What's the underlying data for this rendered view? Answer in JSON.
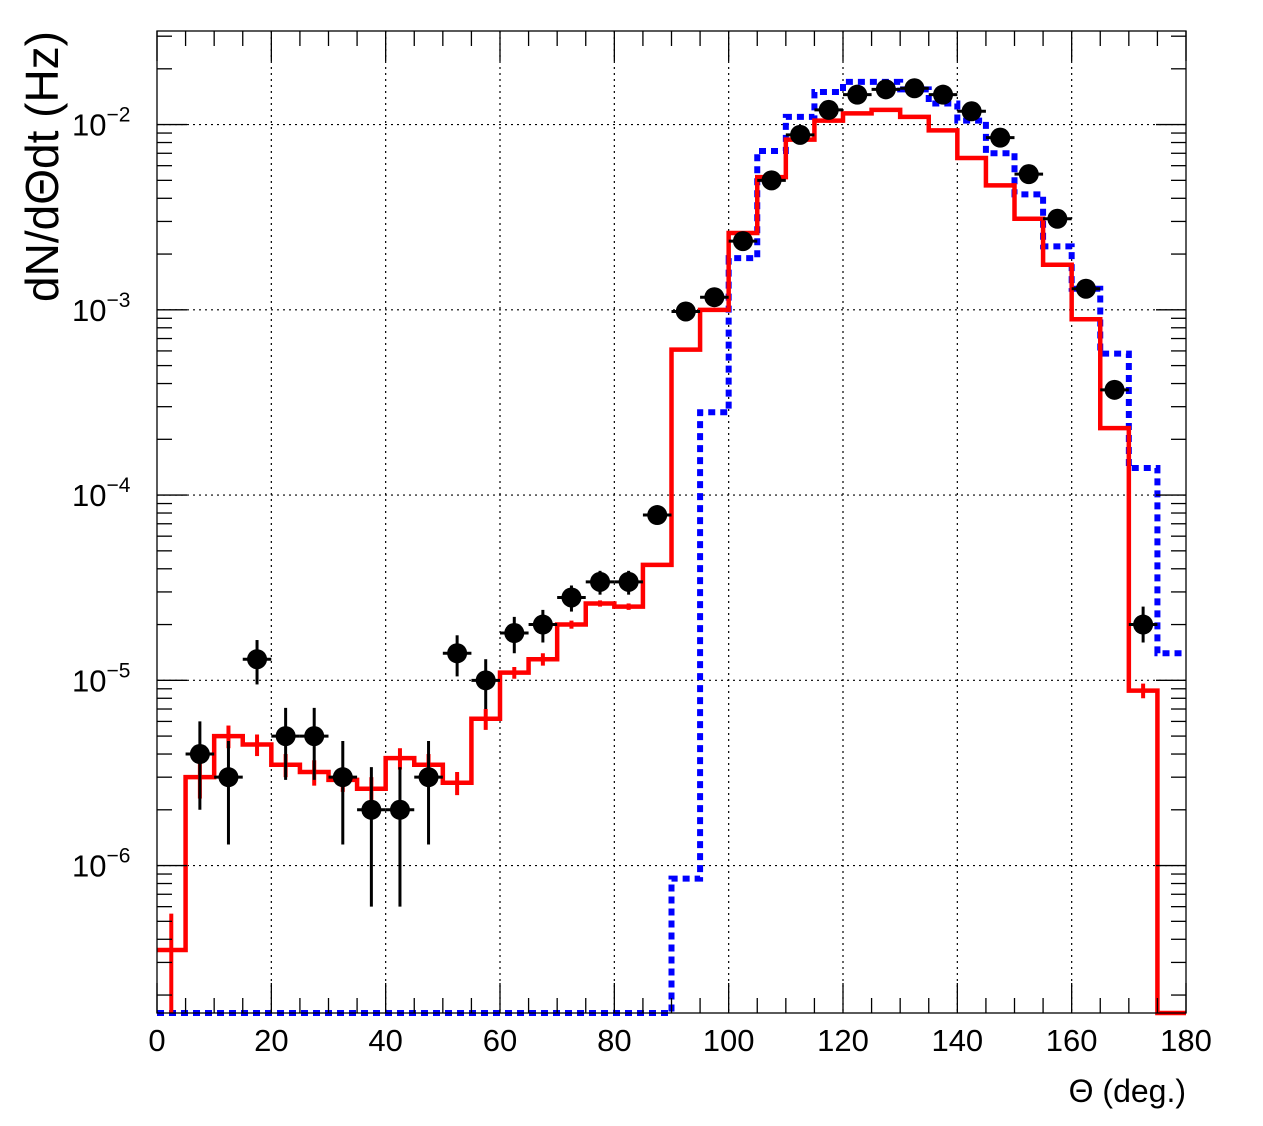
{
  "chart_data": {
    "type": "line",
    "xlabel": "Θ (deg.)",
    "ylabel": "dN/dΘdt (Hz)",
    "xlim": [
      0,
      180
    ],
    "ylim": [
      1.6e-07,
      0.032
    ],
    "y_scale": "log",
    "grid": true,
    "bin_width": 5,
    "x_ticks": [
      0,
      20,
      40,
      60,
      80,
      100,
      120,
      140,
      160,
      180
    ],
    "x_tick_labels": [
      "0",
      "20",
      "40",
      "60",
      "80",
      "100",
      "120",
      "140",
      "160",
      "180"
    ],
    "y_ticks": [
      {
        "value": 1e-06,
        "base": "10",
        "exp": "−6"
      },
      {
        "value": 1e-05,
        "base": "10",
        "exp": "−5"
      },
      {
        "value": 0.0001,
        "base": "10",
        "exp": "−4"
      },
      {
        "value": 0.001,
        "base": "10",
        "exp": "−3"
      },
      {
        "value": 0.01,
        "base": "10",
        "exp": "−2"
      }
    ],
    "series": [
      {
        "style": "step",
        "color": "#0000ff",
        "dashed": true,
        "bin_edges": [
          0,
          90,
          95,
          100,
          105,
          110,
          115,
          120,
          125,
          130,
          135,
          140,
          145,
          150,
          155,
          160,
          165,
          170,
          175,
          180
        ],
        "values": [
          1.6e-07,
          8.5e-07,
          0.00028,
          0.0019,
          0.0072,
          0.011,
          0.015,
          0.017,
          0.017,
          0.0155,
          0.013,
          0.0105,
          0.007,
          0.0042,
          0.0022,
          0.0013,
          0.00058,
          0.00014,
          1.4e-05
        ]
      },
      {
        "style": "step",
        "color": "#ff0000",
        "dashed": false,
        "bin_edges": [
          0,
          5,
          10,
          15,
          20,
          25,
          30,
          35,
          40,
          45,
          50,
          55,
          60,
          65,
          70,
          75,
          80,
          85,
          90,
          95,
          100,
          105,
          110,
          115,
          120,
          125,
          130,
          135,
          140,
          145,
          150,
          155,
          160,
          165,
          170,
          175,
          180
        ],
        "values": [
          3.5e-07,
          3e-06,
          5e-06,
          4.5e-06,
          3.5e-06,
          3.2e-06,
          2.9e-06,
          2.6e-06,
          3.8e-06,
          3.5e-06,
          2.8e-06,
          6.2e-06,
          1.1e-05,
          1.3e-05,
          2e-05,
          2.6e-05,
          2.5e-05,
          4.2e-05,
          0.00061,
          0.001,
          0.0026,
          0.0052,
          0.0083,
          0.0105,
          0.0115,
          0.012,
          0.011,
          0.0093,
          0.0066,
          0.0047,
          0.0031,
          0.00175,
          0.00089,
          0.00023,
          8.8e-06,
          1.6e-07
        ],
        "errors": [
          {
            "x": 2.5,
            "lo": 1.6e-07,
            "hi": 5.5e-07
          },
          {
            "x": 7.5,
            "lo": 2.3e-06,
            "hi": 3.8e-06
          },
          {
            "x": 12.5,
            "lo": 4.3e-06,
            "hi": 5.7e-06
          },
          {
            "x": 17.5,
            "lo": 3.9e-06,
            "hi": 5.1e-06
          },
          {
            "x": 22.5,
            "lo": 3e-06,
            "hi": 4e-06
          },
          {
            "x": 27.5,
            "lo": 2.7e-06,
            "hi": 3.7e-06
          },
          {
            "x": 32.5,
            "lo": 2.5e-06,
            "hi": 3.3e-06
          },
          {
            "x": 37.5,
            "lo": 2.2e-06,
            "hi": 3e-06
          },
          {
            "x": 42.5,
            "lo": 3.3e-06,
            "hi": 4.3e-06
          },
          {
            "x": 47.5,
            "lo": 3e-06,
            "hi": 4e-06
          },
          {
            "x": 52.5,
            "lo": 2.4e-06,
            "hi": 3.2e-06
          },
          {
            "x": 57.5,
            "lo": 5.4e-06,
            "hi": 7e-06
          },
          {
            "x": 62.5,
            "lo": 1.02e-05,
            "hi": 1.18e-05
          },
          {
            "x": 67.5,
            "lo": 1.2e-05,
            "hi": 1.4e-05
          },
          {
            "x": 72.5,
            "lo": 1.9e-05,
            "hi": 2.1e-05
          },
          {
            "x": 77.5,
            "lo": 2.5e-05,
            "hi": 2.7e-05
          },
          {
            "x": 82.5,
            "lo": 2.4e-05,
            "hi": 2.6e-05
          },
          {
            "x": 87.5,
            "lo": 4.1e-05,
            "hi": 4.3e-05
          },
          {
            "x": 172.5,
            "lo": 8e-06,
            "hi": 9.6e-06
          }
        ]
      },
      {
        "style": "points",
        "color": "#000000",
        "points": [
          {
            "x": 7.5,
            "y": 4e-06,
            "lo": 2e-06,
            "hi": 6e-06
          },
          {
            "x": 12.5,
            "y": 3e-06,
            "lo": 1.3e-06,
            "hi": 4.7e-06
          },
          {
            "x": 17.5,
            "y": 1.3e-05,
            "lo": 9.5e-06,
            "hi": 1.65e-05
          },
          {
            "x": 22.5,
            "y": 5e-06,
            "lo": 2.9e-06,
            "hi": 7.1e-06
          },
          {
            "x": 27.5,
            "y": 5e-06,
            "lo": 2.9e-06,
            "hi": 7.1e-06
          },
          {
            "x": 32.5,
            "y": 3e-06,
            "lo": 1.3e-06,
            "hi": 4.7e-06
          },
          {
            "x": 37.5,
            "y": 2e-06,
            "lo": 6e-07,
            "hi": 3.4e-06
          },
          {
            "x": 42.5,
            "y": 2e-06,
            "lo": 6e-07,
            "hi": 3.4e-06
          },
          {
            "x": 47.5,
            "y": 3e-06,
            "lo": 1.3e-06,
            "hi": 4.7e-06
          },
          {
            "x": 52.5,
            "y": 1.4e-05,
            "lo": 1.05e-05,
            "hi": 1.75e-05
          },
          {
            "x": 57.5,
            "y": 1e-05,
            "lo": 7e-06,
            "hi": 1.3e-05
          },
          {
            "x": 62.5,
            "y": 1.8e-05,
            "lo": 1.4e-05,
            "hi": 2.2e-05
          },
          {
            "x": 67.5,
            "y": 2e-05,
            "lo": 1.6e-05,
            "hi": 2.4e-05
          },
          {
            "x": 72.5,
            "y": 2.8e-05,
            "lo": 2.35e-05,
            "hi": 3.25e-05
          },
          {
            "x": 77.5,
            "y": 3.4e-05,
            "lo": 2.9e-05,
            "hi": 3.9e-05
          },
          {
            "x": 82.5,
            "y": 3.4e-05,
            "lo": 2.9e-05,
            "hi": 3.9e-05
          },
          {
            "x": 87.5,
            "y": 7.8e-05,
            "lo": 7.1e-05,
            "hi": 8.5e-05
          },
          {
            "x": 92.5,
            "y": 0.00098,
            "lo": 0.00096,
            "hi": 0.001
          },
          {
            "x": 97.5,
            "y": 0.00117,
            "lo": 0.00115,
            "hi": 0.00119
          },
          {
            "x": 102.5,
            "y": 0.00235,
            "lo": 0.00232,
            "hi": 0.00238
          },
          {
            "x": 107.5,
            "y": 0.005,
            "lo": 0.00495,
            "hi": 0.00505
          },
          {
            "x": 112.5,
            "y": 0.0088,
            "lo": 0.0087,
            "hi": 0.0089
          },
          {
            "x": 117.5,
            "y": 0.012,
            "lo": 0.0119,
            "hi": 0.0121
          },
          {
            "x": 122.5,
            "y": 0.0145,
            "lo": 0.0144,
            "hi": 0.0146
          },
          {
            "x": 127.5,
            "y": 0.0155,
            "lo": 0.0154,
            "hi": 0.0156
          },
          {
            "x": 132.5,
            "y": 0.0157,
            "lo": 0.0156,
            "hi": 0.0158
          },
          {
            "x": 137.5,
            "y": 0.0145,
            "lo": 0.0144,
            "hi": 0.0146
          },
          {
            "x": 142.5,
            "y": 0.0118,
            "lo": 0.0117,
            "hi": 0.0119
          },
          {
            "x": 147.5,
            "y": 0.0085,
            "lo": 0.0084,
            "hi": 0.0086
          },
          {
            "x": 152.5,
            "y": 0.0054,
            "lo": 0.00535,
            "hi": 0.00545
          },
          {
            "x": 157.5,
            "y": 0.0031,
            "lo": 0.00307,
            "hi": 0.00313
          },
          {
            "x": 162.5,
            "y": 0.0013,
            "lo": 0.00128,
            "hi": 0.00132
          },
          {
            "x": 167.5,
            "y": 0.00037,
            "lo": 0.00036,
            "hi": 0.00038
          },
          {
            "x": 172.5,
            "y": 2e-05,
            "lo": 1.6e-05,
            "hi": 2.5e-05
          }
        ]
      }
    ]
  }
}
